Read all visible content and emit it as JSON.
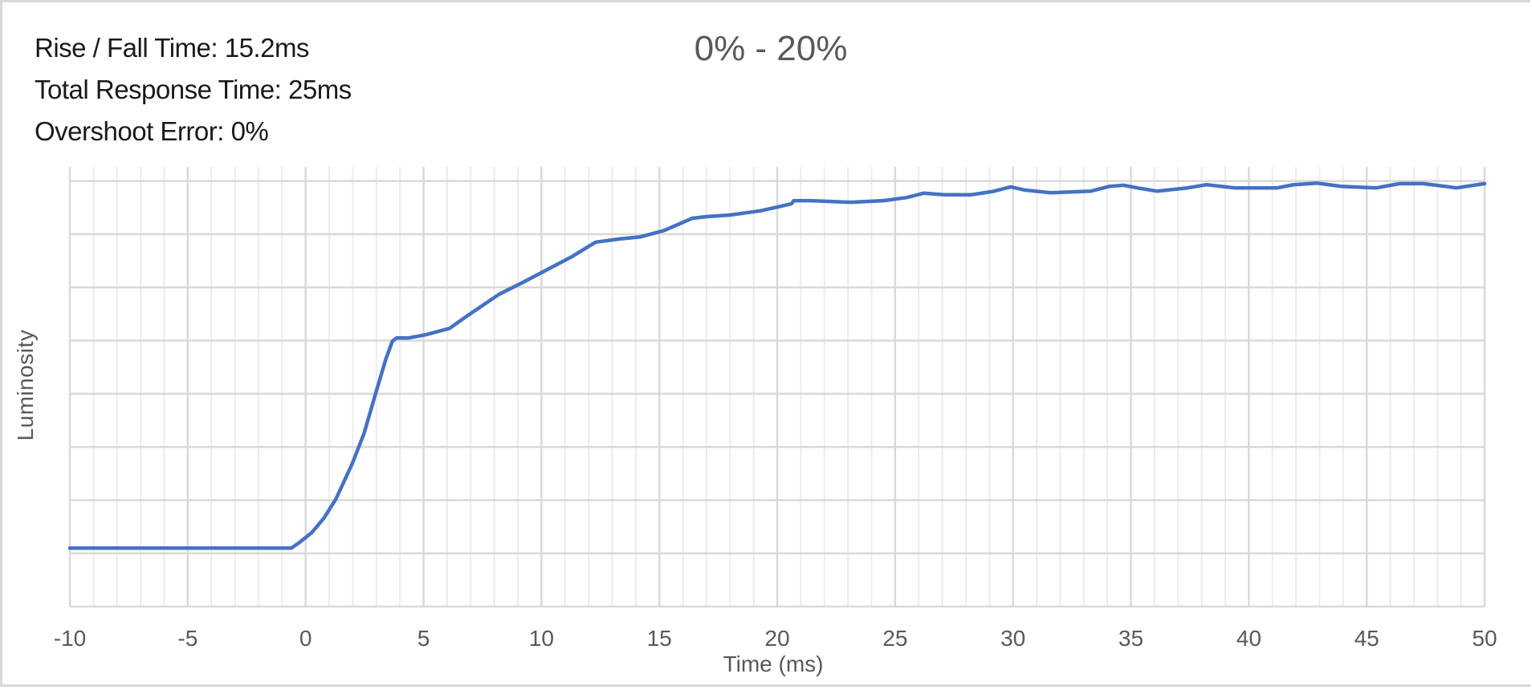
{
  "stats": {
    "rise_fall": "Rise / Fall Time: 15.2ms",
    "total_response": "Total Response Time: 25ms",
    "overshoot": "Overshoot Error: 0%"
  },
  "colors": {
    "series": "#4472c4",
    "grid_major": "#d9d9d9",
    "grid_minor": "#ececec",
    "text": "#595959",
    "frame": "#d9d9d9"
  },
  "chart_data": {
    "type": "line",
    "title": "0% - 20%",
    "xlabel": "Time (ms)",
    "ylabel": "Luminosity",
    "xlim": [
      -10,
      50
    ],
    "ylim": [
      0,
      8.2
    ],
    "x_ticks": [
      "-10",
      "-5",
      "0",
      "5",
      "10",
      "15",
      "20",
      "25",
      "30",
      "35",
      "40",
      "45",
      "50"
    ],
    "x_minor_step": 1,
    "y_grid_lines": [
      1,
      2,
      3,
      4,
      5,
      6,
      7,
      8
    ],
    "y_tick_labels_visible": false,
    "grid": true,
    "legend": "none",
    "annotations": [
      "Rise / Fall Time: 15.2ms",
      "Total Response Time: 25ms",
      "Overshoot Error: 0%"
    ],
    "series": [
      {
        "name": "Luminosity",
        "x": [
          -10,
          -0.6,
          -0.25,
          0.26,
          0.77,
          1.28,
          1.97,
          2.48,
          2.99,
          3.4,
          3.68,
          3.85,
          4.36,
          5.1,
          6.1,
          6.9,
          8.2,
          9.2,
          10.1,
          11.3,
          12.3,
          13.3,
          14.2,
          15.2,
          16.4,
          17.0,
          18.0,
          19.3,
          20.6,
          20.7,
          21.4,
          23.1,
          24.5,
          25.5,
          26.2,
          27.1,
          28.2,
          29.1,
          29.9,
          30.5,
          31.6,
          33.3,
          34.1,
          34.7,
          35.4,
          36.1,
          37.4,
          38.2,
          39.4,
          41.2,
          41.9,
          42.9,
          43.9,
          45.4,
          46.4,
          47.4,
          48.3,
          48.8,
          50
        ],
        "y": [
          1.1,
          1.1,
          1.21,
          1.39,
          1.66,
          2.02,
          2.68,
          3.26,
          4.04,
          4.65,
          4.99,
          5.05,
          5.05,
          5.11,
          5.23,
          5.48,
          5.87,
          6.09,
          6.3,
          6.58,
          6.85,
          6.91,
          6.95,
          7.07,
          7.3,
          7.33,
          7.36,
          7.44,
          7.57,
          7.63,
          7.63,
          7.6,
          7.63,
          7.69,
          7.77,
          7.74,
          7.74,
          7.8,
          7.89,
          7.83,
          7.78,
          7.81,
          7.9,
          7.92,
          7.86,
          7.81,
          7.87,
          7.93,
          7.87,
          7.87,
          7.93,
          7.96,
          7.9,
          7.87,
          7.95,
          7.95,
          7.9,
          7.87,
          7.95
        ]
      }
    ]
  }
}
